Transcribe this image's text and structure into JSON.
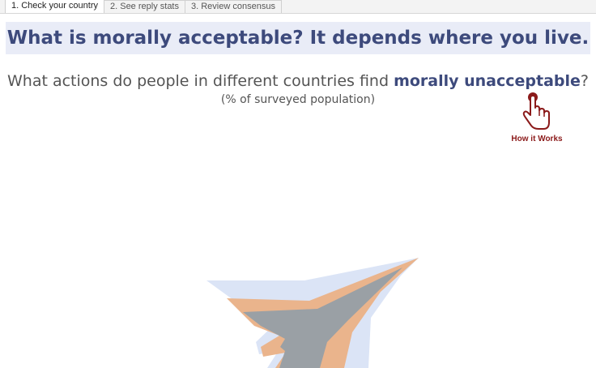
{
  "tabs": [
    {
      "label": "1. Check your country",
      "active": true
    },
    {
      "label": "2. See reply stats",
      "active": false
    },
    {
      "label": "3. Review consensus",
      "active": false
    }
  ],
  "banner": {
    "title": "What is morally acceptable? It depends where you live."
  },
  "question": {
    "prefix": "What actions do people in different countries find ",
    "emphasis": "morally unacceptable",
    "suffix": "?",
    "subtitle": "(% of surveyed population)"
  },
  "how_it_works": {
    "label": "How it Works",
    "icon": "pointing-hand-icon",
    "color": "#8b1a1a"
  },
  "colors": {
    "title": "#3d4a7c",
    "outer_area": "#dbe4f6",
    "middle_area": "#eab48c",
    "inner_area": "#9aa0a5"
  }
}
